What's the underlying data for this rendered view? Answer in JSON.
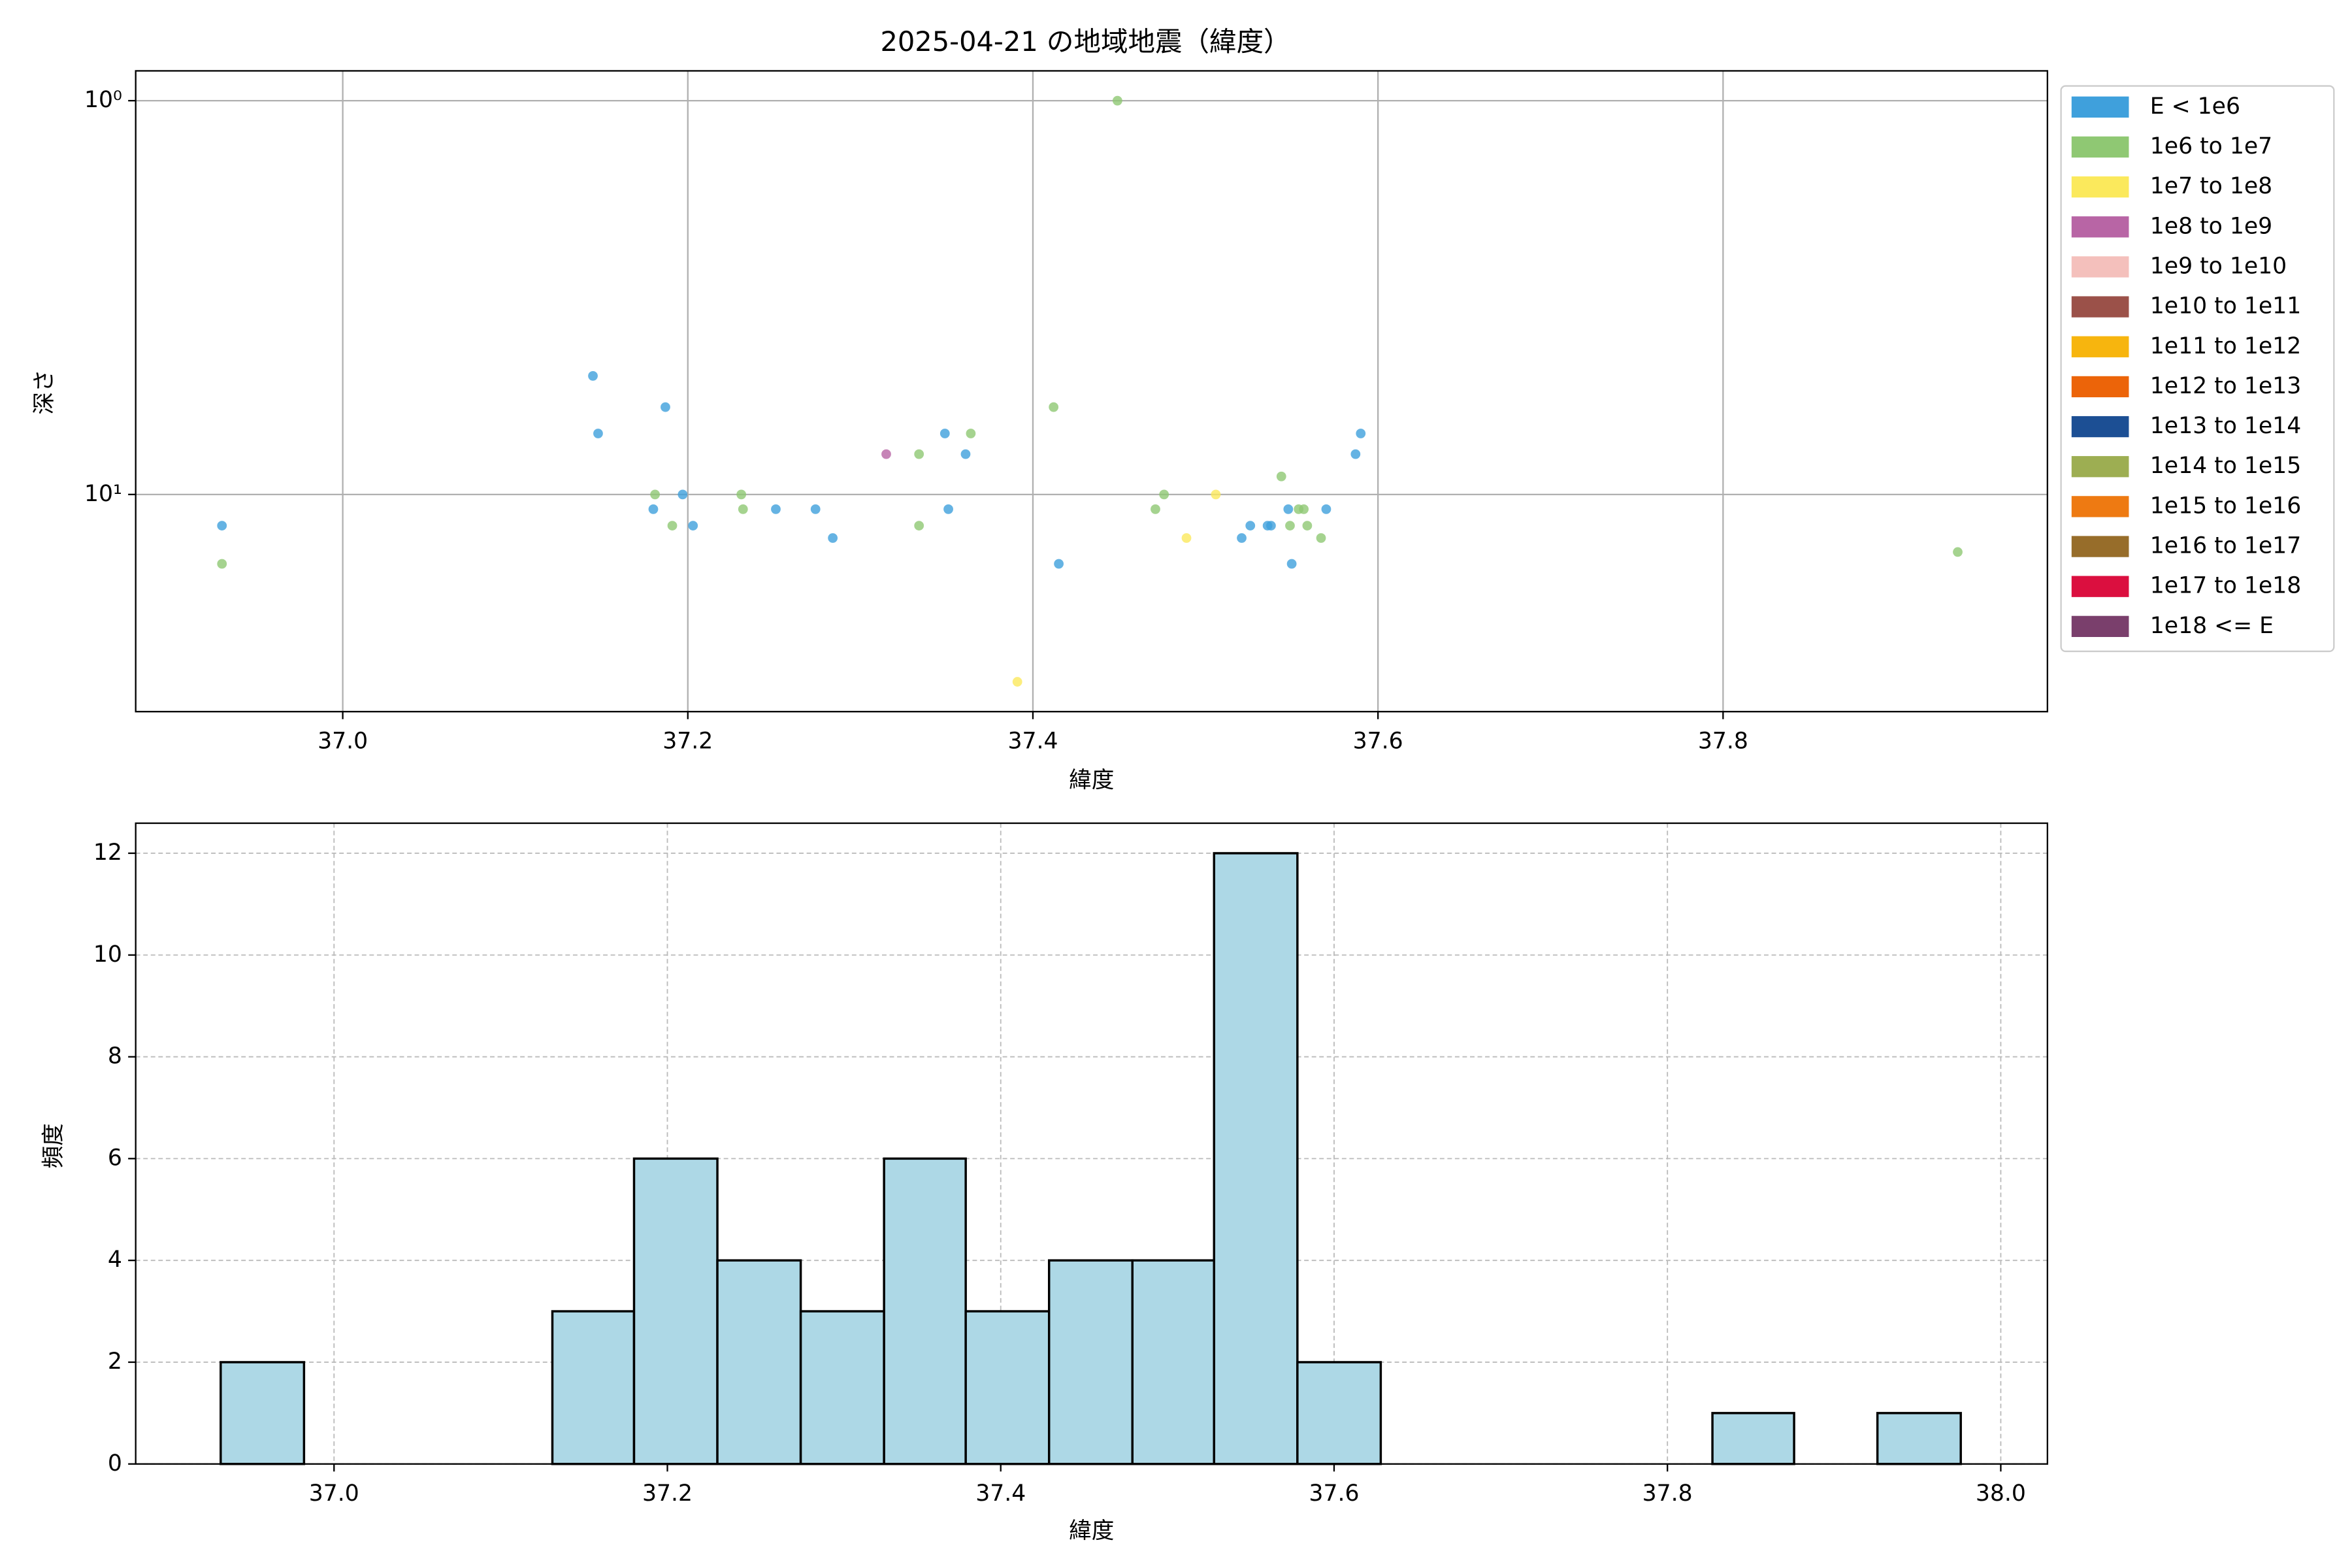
{
  "chart_data": [
    {
      "type": "scatter",
      "title": "2025-04-21 の地域地震（緯度）",
      "xlabel": "緯度",
      "ylabel": "深さ",
      "log_y": true,
      "grid": true,
      "legend": "outside upper right",
      "xlim": [
        36.88,
        37.988
      ],
      "ylim": [
        35.6,
        0.84
      ],
      "xticks": [
        {
          "value": 37,
          "label": "37.0"
        },
        {
          "value": 37.2,
          "label": "37.2"
        },
        {
          "value": 37.4,
          "label": "37.4"
        },
        {
          "value": 37.6,
          "label": "37.6"
        },
        {
          "value": 37.8,
          "label": "37.8"
        }
      ],
      "yticks": [
        {
          "value": 1,
          "label": "10⁰"
        },
        {
          "value": 10,
          "label": "10¹"
        }
      ],
      "series": [
        {
          "name": "E < 1e6",
          "color": "#3fa0dc",
          "x": [
            36.93,
            37.145,
            37.148,
            37.187,
            37.18,
            37.197,
            37.203,
            37.251,
            37.274,
            37.284,
            37.349,
            37.351,
            37.361,
            37.415,
            37.521,
            37.526,
            37.536,
            37.538,
            37.548,
            37.55,
            37.57,
            37.587,
            37.59
          ],
          "values": [
            12.0,
            5.0,
            7.0,
            6.0,
            10.9,
            10,
            12.0,
            10.9,
            10.9,
            12.9,
            7.0,
            10.9,
            7.9,
            15.0,
            12.9,
            12.0,
            12.0,
            12.0,
            10.9,
            15.0,
            10.9,
            7.9,
            7.0
          ]
        },
        {
          "name": "1e6 to 1e7",
          "color": "#8fc873",
          "x": [
            36.93,
            37.181,
            37.191,
            37.231,
            37.232,
            37.334,
            37.334,
            37.364,
            37.412,
            37.449,
            37.471,
            37.476,
            37.544,
            37.549,
            37.554,
            37.557,
            37.559,
            37.567,
            37.936
          ],
          "values": [
            15.0,
            10,
            12.0,
            10,
            10.9,
            12.0,
            7.9,
            7.0,
            6.0,
            1.0,
            10.9,
            10,
            9.0,
            12.0,
            10.9,
            10.9,
            12.0,
            12.9,
            14.0
          ]
        },
        {
          "name": "1e7 to 1e8",
          "color": "#fbe95c",
          "x": [
            37.391,
            37.489,
            37.506
          ],
          "values": [
            29.9,
            12.9,
            10
          ]
        },
        {
          "name": "1e8 to 1e9",
          "color": "#b865a5",
          "x": [
            37.315
          ],
          "values": [
            7.9
          ]
        },
        {
          "name": "1e9 to 1e10",
          "color": "#f4c0bc",
          "x": [],
          "values": []
        },
        {
          "name": "1e10 to 1e11",
          "color": "#9b5149",
          "x": [],
          "values": []
        },
        {
          "name": "1e11 to 1e12",
          "color": "#f7b50e",
          "x": [],
          "values": []
        },
        {
          "name": "1e12 to 1e13",
          "color": "#ec6409",
          "x": [],
          "values": []
        },
        {
          "name": "1e13 to 1e14",
          "color": "#1c4f94",
          "x": [],
          "values": []
        },
        {
          "name": "1e14 to 1e15",
          "color": "#9dae52",
          "x": [],
          "values": []
        },
        {
          "name": "1e15 to 1e16",
          "color": "#ee7a12",
          "x": [],
          "values": []
        },
        {
          "name": "1e16 to 1e17",
          "color": "#976d2a",
          "x": [],
          "values": []
        },
        {
          "name": "1e17 to 1e18",
          "color": "#db0f3f",
          "x": [],
          "values": []
        },
        {
          "name": "1e18 <= E",
          "color": "#7a3f6c",
          "x": [],
          "values": []
        }
      ]
    },
    {
      "type": "histogram",
      "xlabel": "緯度",
      "ylabel": "頻度",
      "color": "#add8e6",
      "edgecolor": "#000000",
      "grid": true,
      "xlim": [
        36.881,
        38.028
      ],
      "ylim": [
        0,
        12.59
      ],
      "xticks": [
        {
          "value": 37,
          "label": "37.0"
        },
        {
          "value": 37.2,
          "label": "37.2"
        },
        {
          "value": 37.4,
          "label": "37.4"
        },
        {
          "value": 37.6,
          "label": "37.6"
        },
        {
          "value": 37.8,
          "label": "37.8"
        },
        {
          "value": 38,
          "label": "38.0"
        }
      ],
      "yticks": [
        0,
        2,
        4,
        6,
        8,
        10,
        12
      ],
      "bins": [
        36.932,
        36.982,
        37.031,
        37.081,
        37.131,
        37.18,
        37.23,
        37.28,
        37.33,
        37.379,
        37.429,
        37.479,
        37.528,
        37.578,
        37.628,
        37.677,
        37.727,
        37.777,
        37.827,
        37.876,
        37.926,
        37.976
      ],
      "values": [
        2,
        0,
        0,
        0,
        3,
        6,
        4,
        3,
        6,
        3,
        4,
        4,
        12,
        2,
        0,
        0,
        0,
        0,
        1,
        0,
        1
      ]
    }
  ]
}
